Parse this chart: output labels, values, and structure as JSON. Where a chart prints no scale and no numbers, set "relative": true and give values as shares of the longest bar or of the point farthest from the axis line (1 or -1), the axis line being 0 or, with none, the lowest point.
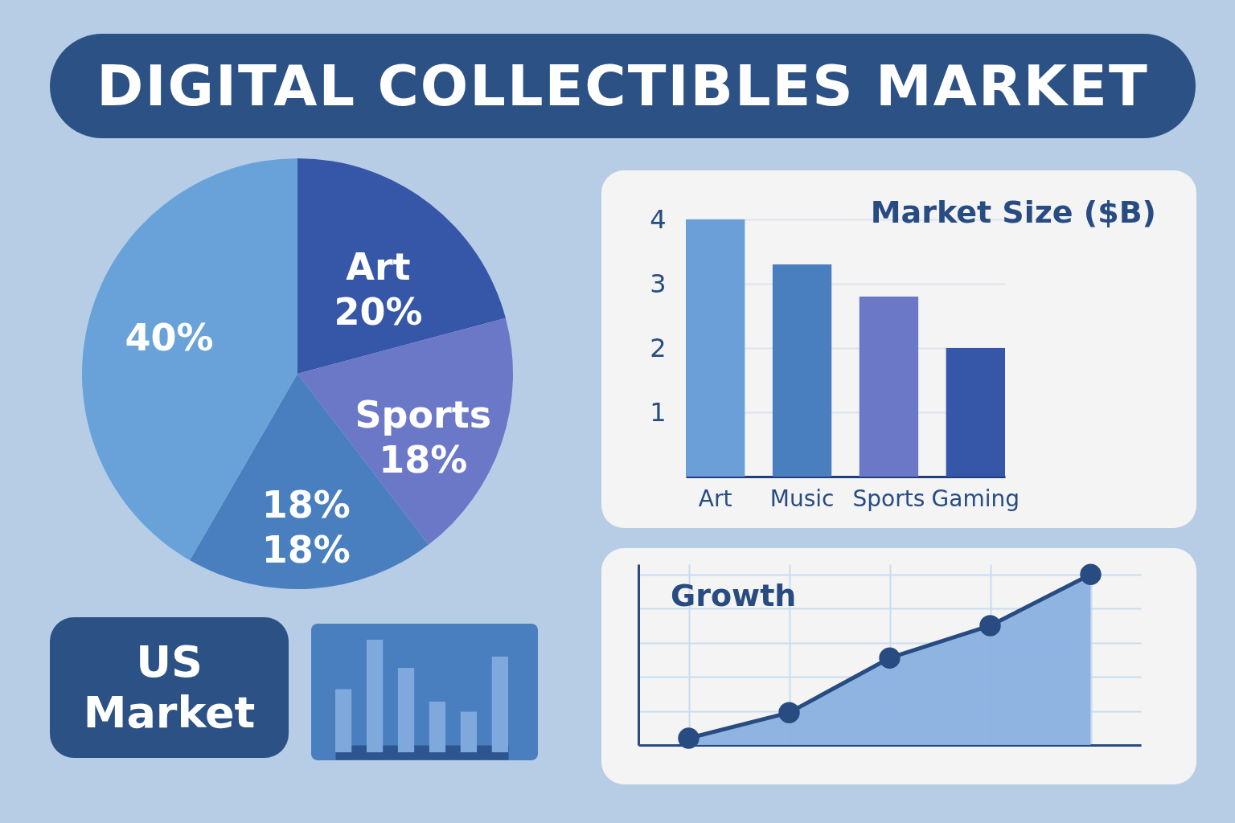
{
  "chart_data": [
    {
      "type": "other",
      "title": "DIGITAL COLLECTIBLES MARKET"
    },
    {
      "type": "pie",
      "categories": [
        "Art",
        "Sports",
        "18%",
        null
      ],
      "values": [
        20,
        18,
        18,
        40
      ],
      "colors": [
        "#3656a8",
        "#6b78c8",
        "#4a7fbf",
        "#69a2d8"
      ],
      "value_labels": [
        "20%",
        "18%",
        "18%",
        "40%"
      ]
    },
    {
      "type": "bar",
      "title": "Market Size ($B)",
      "categories": [
        "Art",
        "Music",
        "Sports",
        "Gaming"
      ],
      "values": [
        4.0,
        3.3,
        2.8,
        2.0
      ],
      "colors": [
        "#6a9fd8",
        "#4a7fbf",
        "#6b78c8",
        "#3656a8"
      ],
      "ylim": [
        0,
        4
      ],
      "yticks": [
        1,
        2,
        3,
        4
      ],
      "grid": "y"
    },
    {
      "type": "bar",
      "relative": true,
      "categories": [
        null,
        null,
        null,
        null,
        null,
        null
      ],
      "values": [
        0.56,
        1,
        0.75,
        0.45,
        0.36,
        0.85
      ],
      "color": "#7fa9dd"
    },
    {
      "type": "area",
      "title": "Growth",
      "relative": true,
      "categories": [
        null,
        null,
        null,
        null,
        null
      ],
      "series": [
        {
          "color": "#8ab0e0",
          "values": [
            0.04,
            0.19,
            0.51,
            0.7,
            1
          ]
        }
      ],
      "marker": "circle",
      "grid": true
    },
    {
      "type": "other",
      "title": "US Market"
    }
  ]
}
